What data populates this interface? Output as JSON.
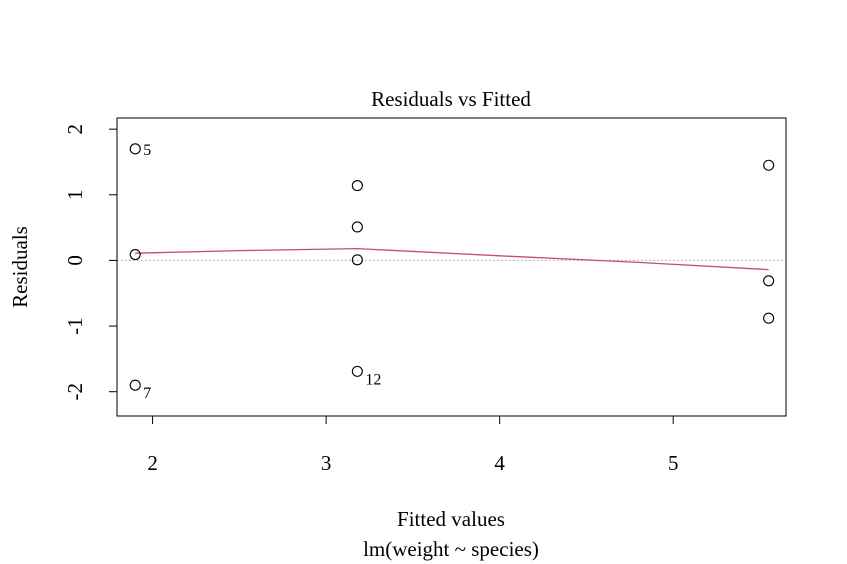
{
  "chart_data": {
    "type": "scatter",
    "title": "Residuals vs Fitted",
    "xlabel": "Fitted values",
    "subtitle": "lm(weight ~ species)",
    "ylabel": "Residuals",
    "xlim": [
      1.795,
      5.65
    ],
    "ylim": [
      -2.37,
      2.17
    ],
    "xticks": [
      2,
      3,
      4,
      5
    ],
    "yticks": [
      -2,
      -1,
      0,
      1,
      2
    ],
    "grid": false,
    "reference_line": {
      "y": 0,
      "color": "#999999",
      "style": "dotted"
    },
    "points": [
      {
        "x": 1.9,
        "y": 1.7,
        "label": "5",
        "label_side": "right"
      },
      {
        "x": 1.9,
        "y": 0.09,
        "label": "",
        "label_side": "right"
      },
      {
        "x": 1.9,
        "y": -1.9,
        "label": "7",
        "label_side": "below-right"
      },
      {
        "x": 3.18,
        "y": 1.14,
        "label": "",
        "label_side": "right"
      },
      {
        "x": 3.18,
        "y": 0.51,
        "label": "",
        "label_side": "right"
      },
      {
        "x": 3.18,
        "y": 0.01,
        "label": "",
        "label_side": "right"
      },
      {
        "x": 3.18,
        "y": -1.69,
        "label": "12",
        "label_side": "below-right"
      },
      {
        "x": 5.55,
        "y": 1.45,
        "label": "",
        "label_side": "right"
      },
      {
        "x": 5.55,
        "y": -0.31,
        "label": "",
        "label_side": "right"
      },
      {
        "x": 5.55,
        "y": -0.88,
        "label": "",
        "label_side": "right"
      }
    ],
    "smooth_line": {
      "color": "#C0506A",
      "points": [
        [
          1.9,
          0.11
        ],
        [
          2.5,
          0.15
        ],
        [
          3.18,
          0.18
        ],
        [
          4.0,
          0.07
        ],
        [
          4.8,
          -0.03
        ],
        [
          5.55,
          -0.14
        ]
      ]
    }
  }
}
